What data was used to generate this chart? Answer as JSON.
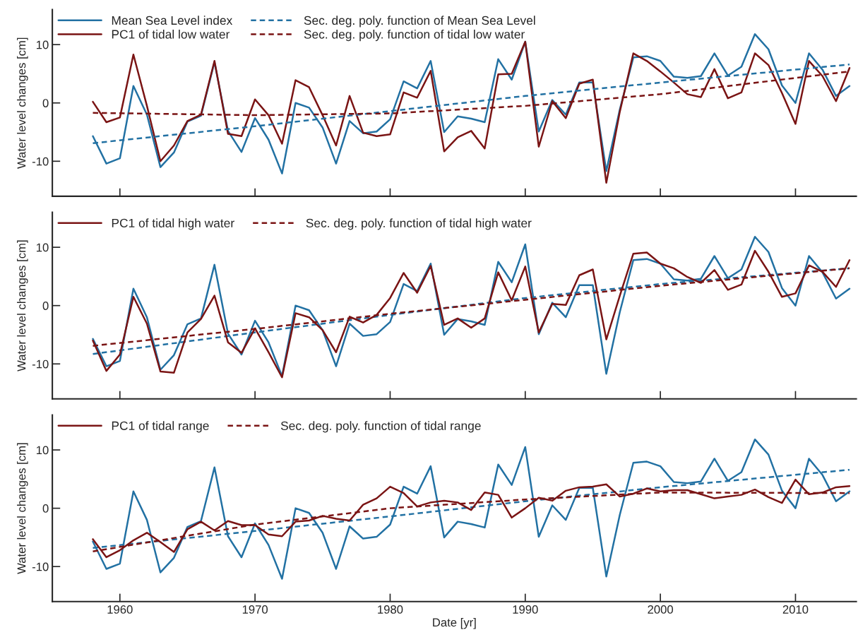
{
  "chart_data": [
    {
      "type": "line",
      "ylabel": "Water level changes [cm]",
      "xlim": [
        1955,
        2014.5
      ],
      "xticks": [
        1960,
        1970,
        1980,
        1990,
        2000,
        2010
      ],
      "ylim": [
        -16,
        16
      ],
      "yticks": [
        -10,
        0,
        10
      ],
      "tick_labels": "y",
      "grid": false,
      "legend": "top left",
      "x": [
        1958,
        1959,
        1960,
        1961,
        1962,
        1963,
        1964,
        1965,
        1966,
        1967,
        1968,
        1969,
        1970,
        1971,
        1972,
        1973,
        1974,
        1975,
        1976,
        1977,
        1978,
        1979,
        1980,
        1981,
        1982,
        1983,
        1984,
        1985,
        1986,
        1987,
        1988,
        1989,
        1990,
        1991,
        1992,
        1993,
        1994,
        1995,
        1996,
        1997,
        1998,
        1999,
        2000,
        2001,
        2002,
        2003,
        2004,
        2005,
        2006,
        2007,
        2008,
        2009,
        2010,
        2011,
        2012,
        2013,
        2014
      ],
      "series": [
        {
          "name": "Mean Sea Level index",
          "color": "#2271a3",
          "line_style": "solid",
          "values": [
            -5.7,
            -10.4,
            -9.5,
            2.9,
            -2,
            -11,
            -8.5,
            -3.2,
            -2.2,
            7.0,
            -4.8,
            -8.4,
            -2.6,
            -6.3,
            -12.1,
            0,
            -0.8,
            -4.2,
            -10.4,
            -3.1,
            -5.2,
            -4.9,
            -2.8,
            3.7,
            2.5,
            7.2,
            -5,
            -2.3,
            -2.7,
            -3.3,
            7.5,
            4.0,
            10.5,
            -4.9,
            0.5,
            -2,
            3.5,
            3.5,
            -11.7,
            -1.1,
            7.8,
            8.0,
            7.2,
            4.5,
            4.3,
            4.6,
            8.5,
            4.7,
            6.2,
            11.8,
            9.2,
            3.0,
            0,
            8.5,
            5.7,
            1.2,
            2.9
          ]
        },
        {
          "name": "PC1 of tidal low water",
          "color": "#7a1414",
          "line_style": "solid",
          "values": [
            0.2,
            -3.3,
            -2.5,
            8.3,
            -0.5,
            -10,
            -7.3,
            -3.1,
            -2,
            7.2,
            -5.3,
            -5.7,
            0.6,
            -2.1,
            -7,
            3.9,
            2.7,
            -2.1,
            -7.3,
            1.2,
            -5.1,
            -5.7,
            -5.4,
            1.8,
            0.9,
            5.5,
            -8.3,
            -5.9,
            -4.8,
            -7.8,
            4.9,
            5,
            10.5,
            -7.5,
            0.3,
            -2.6,
            3.3,
            4.0,
            -13.7,
            -1.5,
            8.5,
            7.2,
            5.4,
            3.5,
            1.5,
            1.0,
            5.8,
            0.8,
            1.8,
            8.5,
            6.5,
            1.7,
            -3.6,
            7.2,
            4.6,
            0.3,
            6.0
          ]
        },
        {
          "name": "Sec. deg. poly. function of Mean Sea Level",
          "color": "#2271a3",
          "line_style": "dashed",
          "x": [
            1958,
            1970,
            1980,
            1990,
            2000,
            2014
          ],
          "values": [
            -6.9,
            -4.0,
            -1.4,
            1.2,
            3.5,
            6.6
          ]
        },
        {
          "name": "Sec. deg. poly. function of tidal low water",
          "color": "#7a1414",
          "line_style": "dashed",
          "x": [
            1958,
            1970,
            1980,
            1990,
            2000,
            2014
          ],
          "values": [
            -1.7,
            -2.1,
            -1.8,
            -0.5,
            1.5,
            5.4
          ]
        }
      ]
    },
    {
      "type": "line",
      "ylabel": "Water level changes [cm]",
      "xlim": [
        1955,
        2014.5
      ],
      "xticks": [
        1960,
        1970,
        1980,
        1990,
        2000,
        2010
      ],
      "ylim": [
        -16,
        16
      ],
      "yticks": [
        -10,
        0,
        10
      ],
      "tick_labels": "y",
      "grid": false,
      "legend": "top left",
      "x": [
        1958,
        1959,
        1960,
        1961,
        1962,
        1963,
        1964,
        1965,
        1966,
        1967,
        1968,
        1969,
        1970,
        1971,
        1972,
        1973,
        1974,
        1975,
        1976,
        1977,
        1978,
        1979,
        1980,
        1981,
        1982,
        1983,
        1984,
        1985,
        1986,
        1987,
        1988,
        1989,
        1990,
        1991,
        1992,
        1993,
        1994,
        1995,
        1996,
        1997,
        1998,
        1999,
        2000,
        2001,
        2002,
        2003,
        2004,
        2005,
        2006,
        2007,
        2008,
        2009,
        2010,
        2011,
        2012,
        2013,
        2014
      ],
      "series": [
        {
          "color": "#2271a3",
          "line_style": "solid",
          "values": [
            -5.7,
            -10.4,
            -9.5,
            2.9,
            -2,
            -11,
            -8.5,
            -3.2,
            -2.2,
            7.0,
            -4.8,
            -8.4,
            -2.6,
            -6.3,
            -12.1,
            0,
            -0.8,
            -4.2,
            -10.4,
            -3.1,
            -5.2,
            -4.9,
            -2.8,
            3.7,
            2.5,
            7.2,
            -5,
            -2.3,
            -2.7,
            -3.3,
            7.5,
            4.0,
            10.5,
            -4.9,
            0.5,
            -2,
            3.5,
            3.5,
            -11.7,
            -1.1,
            7.8,
            8.0,
            7.2,
            4.5,
            4.3,
            4.6,
            8.5,
            4.7,
            6.2,
            11.8,
            9.2,
            3.0,
            0,
            8.5,
            5.7,
            1.2,
            2.9
          ]
        },
        {
          "color": "#2271a3",
          "line_style": "dashed",
          "x": [
            1958,
            1970,
            1980,
            1990,
            2000,
            2014
          ],
          "values": [
            -8.3,
            -4.6,
            -1.6,
            1.3,
            3.7,
            6.4
          ]
        },
        {
          "name": "PC1 of tidal high water",
          "color": "#7a1414",
          "line_style": "solid",
          "values": [
            -6.0,
            -11.2,
            -8.4,
            1.5,
            -3.1,
            -11.3,
            -11.5,
            -4.6,
            -2.3,
            1.7,
            -6.3,
            -8.1,
            -3.9,
            -8.0,
            -12.3,
            -1.3,
            -2.0,
            -4.2,
            -8.0,
            -1.9,
            -2.9,
            -1.6,
            1.3,
            5.6,
            2.2,
            6.8,
            -3.3,
            -2.2,
            -3.8,
            -2.2,
            5.7,
            0.9,
            6.7,
            -4.6,
            0.3,
            0.1,
            5.2,
            6.2,
            -5.8,
            1.7,
            8.9,
            9.1,
            7.2,
            6.4,
            4.9,
            3.9,
            6.1,
            2.7,
            3.6,
            9.4,
            5.8,
            1.5,
            2.1,
            6.9,
            5.8,
            3.2,
            7.8
          ]
        },
        {
          "name": "Sec. deg. poly. function of tidal high water",
          "color": "#7a1414",
          "line_style": "dashed",
          "x": [
            1958,
            1970,
            1980,
            1990,
            2000,
            2014
          ],
          "values": [
            -6.9,
            -4.0,
            -1.4,
            1.0,
            3.4,
            6.4
          ]
        }
      ]
    },
    {
      "type": "line",
      "xlabel": "Date [yr]",
      "ylabel": "Water level changes [cm]",
      "xlim": [
        1955,
        2014.5
      ],
      "xticks": [
        1960,
        1970,
        1980,
        1990,
        2000,
        2010
      ],
      "ylim": [
        -16,
        16
      ],
      "yticks": [
        -10,
        0,
        10
      ],
      "grid": false,
      "legend": "top left",
      "x": [
        1958,
        1959,
        1960,
        1961,
        1962,
        1963,
        1964,
        1965,
        1966,
        1967,
        1968,
        1969,
        1970,
        1971,
        1972,
        1973,
        1974,
        1975,
        1976,
        1977,
        1978,
        1979,
        1980,
        1981,
        1982,
        1983,
        1984,
        1985,
        1986,
        1987,
        1988,
        1989,
        1990,
        1991,
        1992,
        1993,
        1994,
        1995,
        1996,
        1997,
        1998,
        1999,
        2000,
        2001,
        2002,
        2003,
        2004,
        2005,
        2006,
        2007,
        2008,
        2009,
        2010,
        2011,
        2012,
        2013,
        2014
      ],
      "series": [
        {
          "color": "#2271a3",
          "line_style": "solid",
          "values": [
            -5.7,
            -10.4,
            -9.5,
            2.9,
            -2,
            -11,
            -8.5,
            -3.2,
            -2.2,
            7.0,
            -4.8,
            -8.4,
            -2.6,
            -6.3,
            -12.1,
            0,
            -0.8,
            -4.2,
            -10.4,
            -3.1,
            -5.2,
            -4.9,
            -2.8,
            3.7,
            2.5,
            7.2,
            -5,
            -2.3,
            -2.7,
            -3.3,
            7.5,
            4.0,
            10.5,
            -4.9,
            0.5,
            -2,
            3.5,
            3.5,
            -11.7,
            -1.1,
            7.8,
            8.0,
            7.2,
            4.5,
            4.3,
            4.6,
            8.5,
            4.7,
            6.2,
            11.8,
            9.2,
            3.0,
            0,
            8.5,
            5.7,
            1.2,
            2.9
          ]
        },
        {
          "color": "#2271a3",
          "line_style": "dashed",
          "x": [
            1958,
            1970,
            1980,
            1990,
            2000,
            2014
          ],
          "values": [
            -6.8,
            -3.9,
            -1.4,
            1.2,
            3.6,
            6.6
          ]
        },
        {
          "name": "PC1 of tidal range",
          "color": "#7a1414",
          "line_style": "solid",
          "values": [
            -5.3,
            -8.4,
            -7.2,
            -5.5,
            -4.2,
            -5.8,
            -7.5,
            -3.6,
            -2.3,
            -3.8,
            -2.2,
            -2.9,
            -2.9,
            -4.5,
            -4.8,
            -2.3,
            -2.1,
            -1.3,
            -1.8,
            -2.1,
            0.6,
            1.7,
            3.7,
            2.6,
            0.3,
            1.0,
            1.3,
            1.0,
            -0.3,
            2.7,
            2.3,
            -1.6,
            0,
            1.8,
            1.3,
            3.0,
            3.6,
            3.7,
            4.1,
            2.0,
            2.5,
            3.4,
            2.9,
            3.1,
            3.1,
            2.4,
            1.7,
            2.0,
            2.3,
            3.2,
            1.9,
            0.9,
            4.9,
            2.4,
            2.7,
            3.6,
            3.8
          ]
        },
        {
          "name": "Sec. deg. poly. function of tidal range",
          "color": "#7a1414",
          "line_style": "dashed",
          "x": [
            1958,
            1970,
            1980,
            1990,
            2000,
            2014
          ],
          "values": [
            -7.4,
            -2.8,
            0.0,
            1.5,
            2.7,
            2.6
          ]
        }
      ]
    }
  ]
}
